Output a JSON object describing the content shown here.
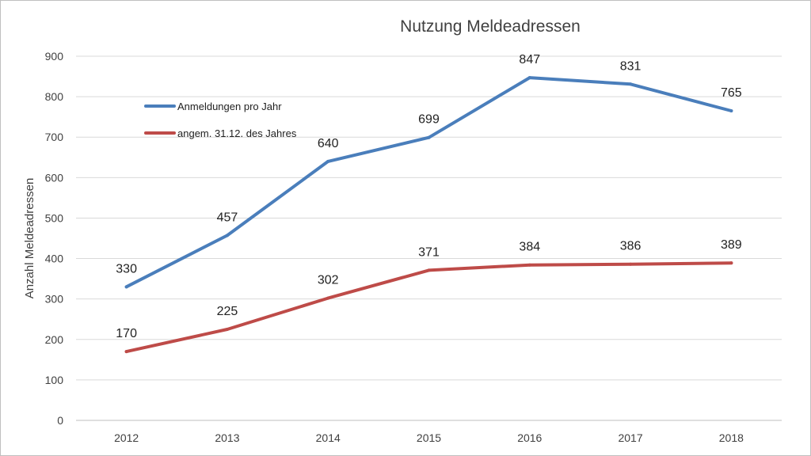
{
  "chart_data": {
    "type": "line",
    "title": "Nutzung Meldeadressen",
    "xlabel": "",
    "ylabel": "Anzahl Meldeadressen",
    "categories": [
      "2012",
      "2013",
      "2014",
      "2015",
      "2016",
      "2017",
      "2018"
    ],
    "ylim": [
      0,
      900
    ],
    "yticks": [
      0,
      100,
      200,
      300,
      400,
      500,
      600,
      700,
      800,
      900
    ],
    "grid": true,
    "legend_position": "top-left",
    "series": [
      {
        "name": "Anmeldungen pro Jahr",
        "color": "#4a7ebb",
        "values": [
          330,
          457,
          640,
          699,
          847,
          831,
          765
        ]
      },
      {
        "name": "angem. 31.12. des Jahres",
        "color": "#be4b48",
        "values": [
          170,
          225,
          302,
          371,
          384,
          386,
          389
        ]
      }
    ]
  }
}
